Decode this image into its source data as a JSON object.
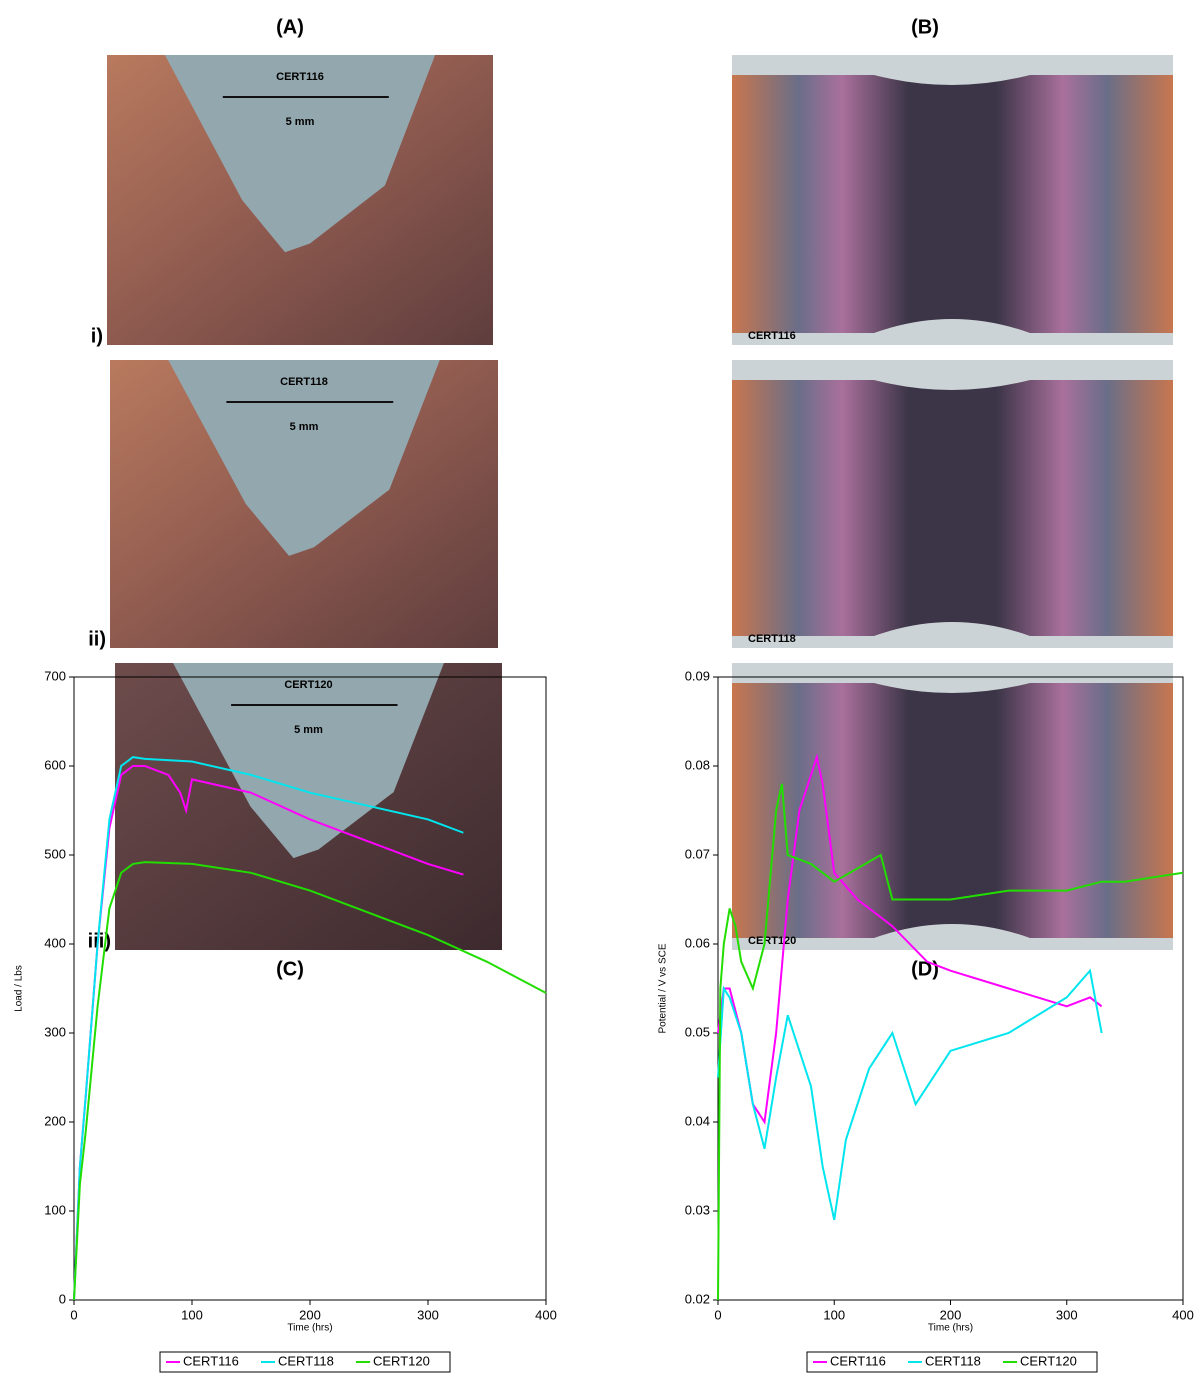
{
  "panels": {
    "labels": [
      "(A)",
      "(B)",
      "(C)",
      "(D)"
    ],
    "rows": [
      {
        "label": "i)",
        "specimen": "CERT116",
        "scale": "5 mm"
      },
      {
        "label": "ii)",
        "specimen": "CERT118",
        "scale": "5 mm"
      },
      {
        "label": "iii)",
        "specimen": "CERT120",
        "scale": "5 mm"
      }
    ]
  },
  "chart_data": [
    {
      "type": "line",
      "xlabel": "Time (hrs)",
      "ylabel": "Load / Lbs",
      "xlim": [
        0,
        400
      ],
      "xticks": [
        0,
        100,
        200,
        300,
        400
      ],
      "ylim": [
        0,
        700
      ],
      "yticks": [
        0,
        100,
        200,
        300,
        400,
        500,
        600,
        700
      ],
      "legend": "bottom",
      "series": [
        {
          "name": "CERT116",
          "color": "#ff00ff",
          "x": [
            0,
            5,
            10,
            20,
            30,
            40,
            50,
            60,
            80,
            90,
            95,
            100,
            150,
            200,
            250,
            300,
            330
          ],
          "values": [
            0,
            150,
            230,
            400,
            530,
            590,
            600,
            600,
            590,
            570,
            550,
            585,
            570,
            540,
            515,
            490,
            478
          ]
        },
        {
          "name": "CERT118",
          "color": "#00e5ee",
          "x": [
            0,
            5,
            10,
            20,
            30,
            40,
            50,
            60,
            100,
            150,
            200,
            250,
            300,
            330
          ],
          "values": [
            0,
            150,
            230,
            400,
            540,
            600,
            610,
            608,
            605,
            590,
            570,
            555,
            540,
            525
          ]
        },
        {
          "name": "CERT120",
          "color": "#22dd00",
          "x": [
            0,
            5,
            10,
            20,
            30,
            40,
            50,
            60,
            100,
            150,
            200,
            250,
            300,
            350,
            400
          ],
          "values": [
            0,
            130,
            190,
            330,
            440,
            480,
            490,
            492,
            490,
            480,
            460,
            435,
            410,
            380,
            345
          ]
        }
      ]
    },
    {
      "type": "line",
      "xlabel": "Time (hrs)",
      "ylabel": "Potential / V vs SCE",
      "xlim": [
        0,
        400
      ],
      "xticks": [
        0,
        100,
        200,
        300,
        400
      ],
      "ylim": [
        0.02,
        0.09
      ],
      "yticks": [
        0.02,
        0.03,
        0.04,
        0.05,
        0.06,
        0.07,
        0.08,
        0.09
      ],
      "legend": "bottom",
      "series": [
        {
          "name": "CERT116",
          "color": "#ff00ff",
          "x": [
            0,
            5,
            10,
            20,
            30,
            40,
            50,
            60,
            70,
            80,
            85,
            90,
            100,
            120,
            150,
            180,
            200,
            250,
            300,
            320,
            330
          ],
          "values": [
            0.05,
            0.055,
            0.055,
            0.05,
            0.042,
            0.04,
            0.05,
            0.065,
            0.075,
            0.079,
            0.081,
            0.078,
            0.068,
            0.065,
            0.062,
            0.058,
            0.057,
            0.055,
            0.053,
            0.054,
            0.053
          ]
        },
        {
          "name": "CERT118",
          "color": "#00e5ee",
          "x": [
            0,
            5,
            10,
            20,
            30,
            40,
            50,
            60,
            70,
            80,
            90,
            100,
            110,
            130,
            150,
            170,
            200,
            250,
            300,
            320,
            330
          ],
          "values": [
            0.045,
            0.055,
            0.054,
            0.05,
            0.042,
            0.037,
            0.045,
            0.052,
            0.048,
            0.044,
            0.035,
            0.029,
            0.038,
            0.046,
            0.05,
            0.042,
            0.048,
            0.05,
            0.054,
            0.057,
            0.05
          ]
        },
        {
          "name": "CERT120",
          "color": "#22dd00",
          "x": [
            0,
            2,
            5,
            10,
            15,
            20,
            30,
            40,
            50,
            55,
            60,
            80,
            100,
            140,
            150,
            200,
            250,
            300,
            330,
            350,
            400
          ],
          "values": [
            0.02,
            0.055,
            0.06,
            0.064,
            0.062,
            0.058,
            0.055,
            0.06,
            0.075,
            0.078,
            0.07,
            0.069,
            0.067,
            0.07,
            0.065,
            0.065,
            0.066,
            0.066,
            0.067,
            0.067,
            0.068
          ]
        }
      ]
    }
  ]
}
